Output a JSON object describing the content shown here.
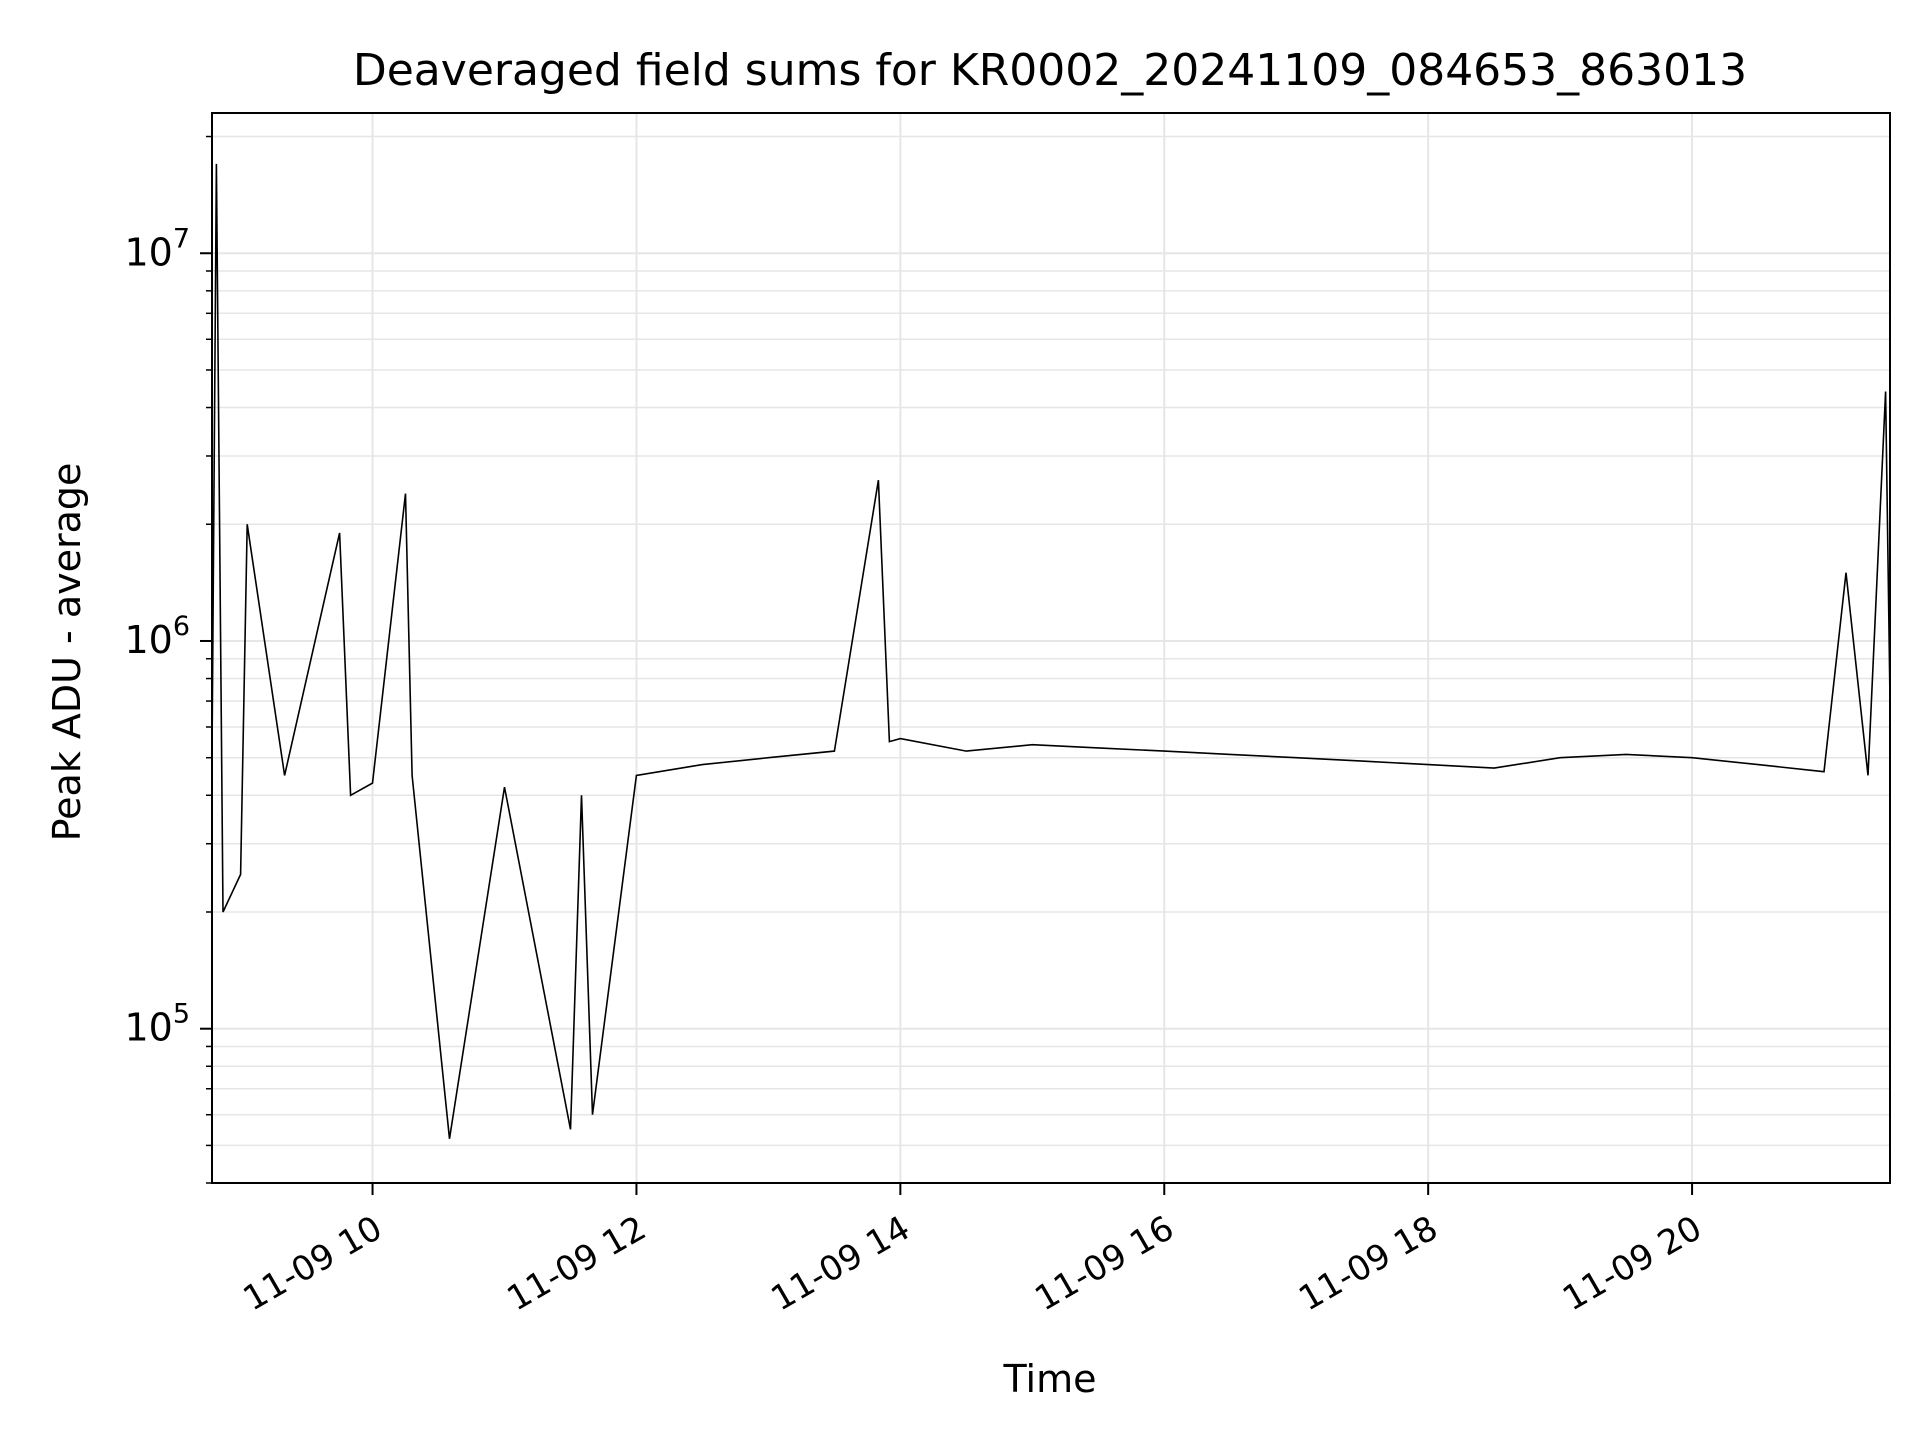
{
  "chart_data": {
    "type": "line",
    "title": "Deaveraged field sums for KR0002_20241109_084653_863013",
    "xlabel": "Time",
    "ylabel": "Peak ADU - average",
    "x_range": [
      "2024-11-09 08:47",
      "2024-11-09 21:30"
    ],
    "y_scale": "log",
    "ylim": [
      40000,
      23000000
    ],
    "grid": true,
    "legend": "none",
    "colors": {
      "line": "#000000",
      "grid": "#e6e6e6",
      "axes": "#000000",
      "background": "#ffffff"
    },
    "x_ticks": [
      {
        "value": "2024-11-09 10:00",
        "label": "11-09 10"
      },
      {
        "value": "2024-11-09 12:00",
        "label": "11-09 12"
      },
      {
        "value": "2024-11-09 14:00",
        "label": "11-09 14"
      },
      {
        "value": "2024-11-09 16:00",
        "label": "11-09 16"
      },
      {
        "value": "2024-11-09 18:00",
        "label": "11-09 18"
      },
      {
        "value": "2024-11-09 20:00",
        "label": "11-09 20"
      }
    ],
    "y_ticks": [
      {
        "value": 100000,
        "base": "10",
        "exp": "5"
      },
      {
        "value": 1000000,
        "base": "10",
        "exp": "6"
      },
      {
        "value": 10000000,
        "base": "10",
        "exp": "7"
      }
    ],
    "series": [
      {
        "x": [
          "2024-11-09 08:47",
          "2024-11-09 08:49",
          "2024-11-09 08:52",
          "2024-11-09 09:00",
          "2024-11-09 09:03",
          "2024-11-09 09:20",
          "2024-11-09 09:45",
          "2024-11-09 09:50",
          "2024-11-09 10:00",
          "2024-11-09 10:15",
          "2024-11-09 10:18",
          "2024-11-09 10:35",
          "2024-11-09 11:00",
          "2024-11-09 11:30",
          "2024-11-09 11:35",
          "2024-11-09 11:40",
          "2024-11-09 12:00",
          "2024-11-09 12:30",
          "2024-11-09 13:00",
          "2024-11-09 13:30",
          "2024-11-09 13:50",
          "2024-11-09 13:55",
          "2024-11-09 14:00",
          "2024-11-09 14:30",
          "2024-11-09 15:00",
          "2024-11-09 15:30",
          "2024-11-09 16:00",
          "2024-11-09 16:30",
          "2024-11-09 17:00",
          "2024-11-09 17:30",
          "2024-11-09 18:00",
          "2024-11-09 18:30",
          "2024-11-09 19:00",
          "2024-11-09 19:30",
          "2024-11-09 20:00",
          "2024-11-09 20:30",
          "2024-11-09 21:00",
          "2024-11-09 21:10",
          "2024-11-09 21:20",
          "2024-11-09 21:28",
          "2024-11-09 21:30"
        ],
        "y": [
          500000,
          17000000,
          200000,
          250000,
          2000000,
          450000,
          1900000,
          400000,
          430000,
          2400000,
          450000,
          52000,
          420000,
          55000,
          400000,
          60000,
          450000,
          480000,
          500000,
          520000,
          2600000,
          550000,
          560000,
          520000,
          540000,
          530000,
          520000,
          510000,
          500000,
          490000,
          480000,
          470000,
          500000,
          510000,
          500000,
          480000,
          460000,
          1500000,
          450000,
          4400000,
          700000
        ]
      }
    ]
  }
}
